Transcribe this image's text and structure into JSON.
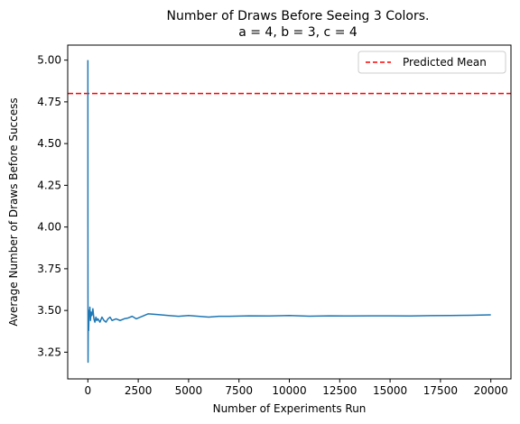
{
  "chart_data": {
    "type": "line",
    "title_line1": "Number of Draws Before Seeing 3 Colors.",
    "title_line2": "a = 4, b = 3, c = 4",
    "xlabel": "Number of Experiments Run",
    "ylabel": "Average Number of Draws Before Success",
    "xlim": [
      -1000,
      21000
    ],
    "ylim": [
      3.09,
      5.09
    ],
    "x_ticks": [
      0,
      2500,
      5000,
      7500,
      10000,
      12500,
      15000,
      17500,
      20000
    ],
    "y_ticks": [
      3.25,
      3.5,
      3.75,
      4.0,
      4.25,
      4.5,
      4.75,
      5.0
    ],
    "y_tick_labels": [
      "3.25",
      "3.50",
      "3.75",
      "4.00",
      "4.25",
      "4.50",
      "4.75",
      "5.00"
    ],
    "legend_position": "top-right",
    "series": [
      {
        "name": "",
        "color": "#1f77b4",
        "x": [
          1,
          3,
          5,
          10,
          20,
          40,
          60,
          80,
          100,
          130,
          160,
          200,
          250,
          300,
          350,
          400,
          450,
          500,
          600,
          700,
          800,
          900,
          1000,
          1100,
          1200,
          1400,
          1600,
          1800,
          2000,
          2200,
          2400,
          2600,
          2800,
          3000,
          3500,
          4000,
          4500,
          5000,
          5500,
          6000,
          6500,
          7000,
          8000,
          9000,
          10000,
          11000,
          12000,
          13000,
          14000,
          15000,
          16000,
          17000,
          18000,
          19000,
          20000
        ],
        "y": [
          5.0,
          4.0,
          3.65,
          3.19,
          3.45,
          3.38,
          3.5,
          3.47,
          3.52,
          3.44,
          3.49,
          3.47,
          3.51,
          3.45,
          3.43,
          3.46,
          3.44,
          3.45,
          3.43,
          3.46,
          3.44,
          3.43,
          3.45,
          3.46,
          3.44,
          3.45,
          3.44,
          3.45,
          3.455,
          3.465,
          3.45,
          3.46,
          3.47,
          3.48,
          3.475,
          3.47,
          3.465,
          3.47,
          3.465,
          3.46,
          3.465,
          3.465,
          3.468,
          3.467,
          3.47,
          3.466,
          3.468,
          3.467,
          3.468,
          3.468,
          3.467,
          3.469,
          3.47,
          3.471,
          3.474
        ]
      }
    ],
    "reference_lines": [
      {
        "name": "Predicted Mean",
        "y": 4.8,
        "color": "#ff0000",
        "style": "dashed"
      }
    ]
  }
}
